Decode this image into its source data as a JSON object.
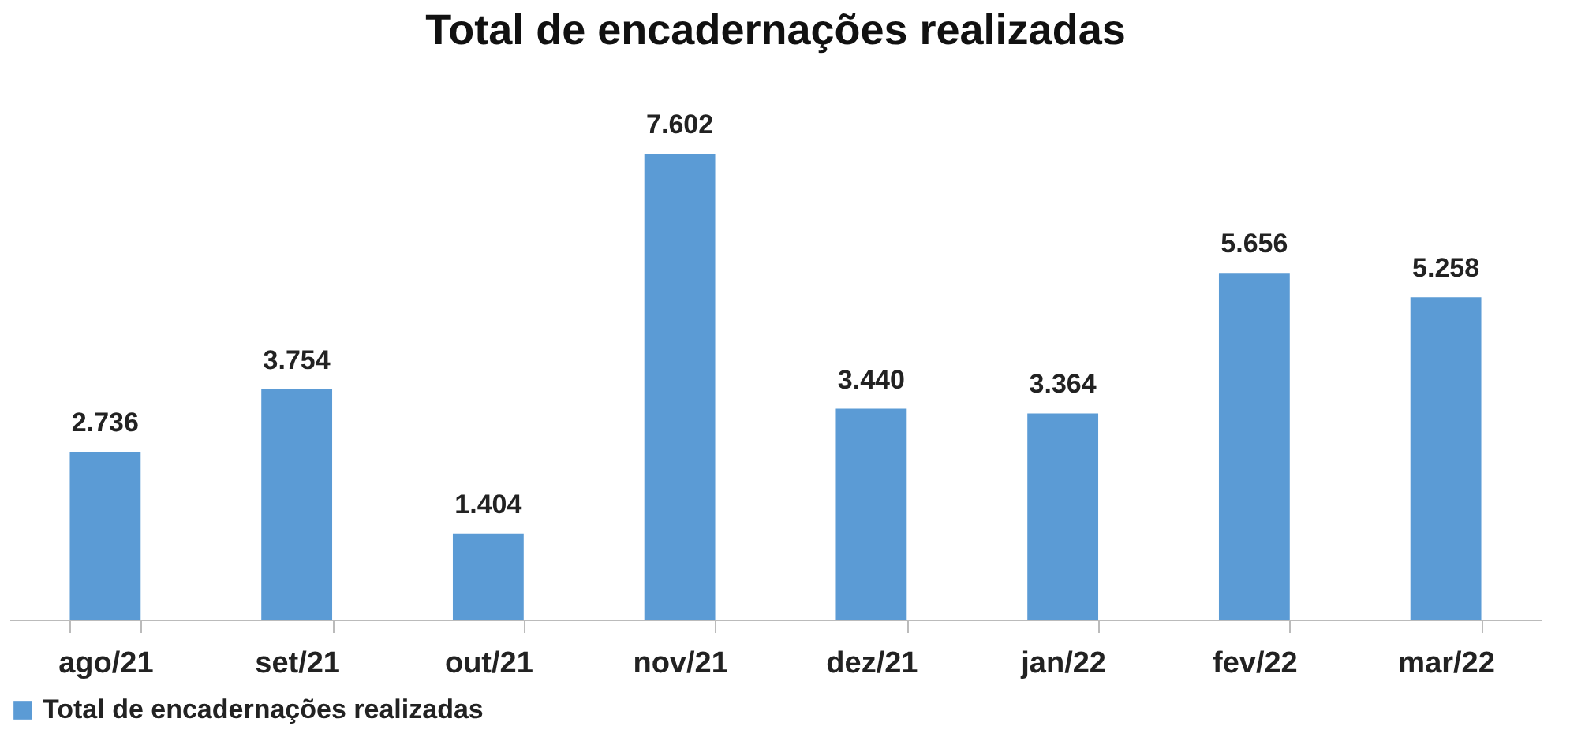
{
  "chart_data": {
    "type": "bar",
    "title": "Total de encadernações realizadas",
    "categories": [
      "ago/21",
      "set/21",
      "out/21",
      "nov/21",
      "dez/21",
      "jan/22",
      "fev/22",
      "mar/22"
    ],
    "series": [
      {
        "name": "Total de encadernações realizadas",
        "color": "#5b9bd5",
        "values": [
          2736,
          3754,
          1404,
          7602,
          3440,
          3364,
          5656,
          5258
        ],
        "value_labels": [
          "2.736",
          "3.754",
          "1.404",
          "7.602",
          "3.440",
          "3.364",
          "5.656",
          "5.258"
        ]
      }
    ],
    "legend": "bottom",
    "tick_labels": "x",
    "grid": false
  }
}
